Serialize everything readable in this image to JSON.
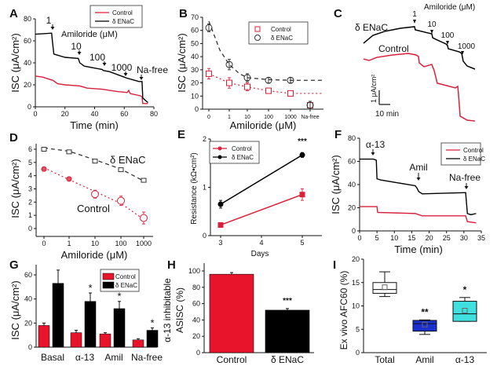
{
  "chart_data": [
    {
      "panel": "A",
      "type": "line",
      "xlabel": "Time (min)",
      "ylabel": "ISC (μA/cm²)",
      "xlim": [
        0,
        80
      ],
      "ylim": [
        0,
        80
      ],
      "xticks": [
        "0",
        "20",
        "40",
        "60",
        "80"
      ],
      "yticks": [
        "0",
        "20",
        "40",
        "60",
        "80"
      ],
      "legend": [
        "Control",
        "δ ENaC"
      ],
      "legend_position": "top-right",
      "annotations": {
        "a1": "1",
        "amiloride": "Amiloride (μM)",
        "a10": "10",
        "a100": "100",
        "a1000": "1000",
        "nafree": "Na-free"
      },
      "series": [
        {
          "name": "Control",
          "color": "#d8203a",
          "x": [
            0,
            5,
            12,
            15,
            20,
            30,
            35,
            45,
            55,
            62,
            63,
            64,
            71,
            72,
            72.5,
            76
          ],
          "y": [
            28,
            27,
            24,
            21,
            20,
            19,
            17,
            16,
            14,
            13,
            15,
            12,
            10,
            9,
            3,
            3
          ]
        },
        {
          "name": "δ ENaC",
          "color": "#000000",
          "x": [
            0,
            11,
            11.5,
            12.5,
            20,
            29,
            30,
            33,
            45,
            46,
            50,
            60,
            62,
            70,
            72,
            72.5,
            75,
            76
          ],
          "y": [
            66,
            67,
            60,
            48,
            45,
            44,
            40,
            37,
            34,
            33,
            32,
            27,
            26,
            23,
            23,
            8,
            5,
            4
          ]
        }
      ]
    },
    {
      "panel": "B",
      "type": "scatter",
      "xlabel": "Amiloride (μM)",
      "ylabel": "ISC (μA/cm²)",
      "ylim": [
        0,
        70
      ],
      "categories": [
        "0",
        "1",
        "10",
        "100",
        "1000",
        "Na-free"
      ],
      "yticks": [
        "0",
        "10",
        "20",
        "30",
        "40",
        "50",
        "60",
        "70"
      ],
      "legend": [
        "Control",
        "δ ENaC"
      ],
      "legend_position": "top-right",
      "series": [
        {
          "name": "Control",
          "color": "#d8203a",
          "marker": "square",
          "values": [
            27,
            20,
            17,
            14,
            12,
            3
          ],
          "errors": [
            4,
            4,
            3,
            2,
            1,
            2
          ]
        },
        {
          "name": "δ ENaC",
          "color": "#333333",
          "marker": "circle",
          "values": [
            62,
            34,
            24,
            22,
            22,
            3
          ],
          "errors": [
            3,
            4,
            3,
            2,
            2,
            3
          ]
        }
      ]
    },
    {
      "panel": "C",
      "type": "line",
      "xunit": "min",
      "yunit": "μA/cm²",
      "labels": {
        "enac": "δ ENaC",
        "control": "Control",
        "a1": "1",
        "amiloride": "Amiloride (μM)",
        "a10": "10",
        "a100": "100",
        "a1000": "1000",
        "scale_y": "1 μA/cm²",
        "scale_x": "10 min"
      },
      "series": [
        {
          "name": "δ ENaC",
          "color": "#000000",
          "x": [
            0,
            8.6,
            19.3,
            33.6,
            46.4,
            47.1,
            58.6,
            62.1,
            62.9,
            65.7,
            75,
            76.4,
            77.1,
            87.1,
            89.3,
            90.7,
            94.3,
            101.4
          ],
          "y": [
            5.83,
            6.39,
            6.67,
            6.89,
            7.0,
            6.78,
            6.56,
            6.5,
            6.22,
            6.11,
            5.78,
            5.67,
            5.44,
            5.22,
            5.11,
            4.56,
            4.22,
            4.0
          ]
        },
        {
          "name": "Control",
          "color": "#d8203a",
          "x": [
            0,
            5,
            12.1,
            26.4,
            40.7,
            47.9,
            50,
            50.7,
            55,
            60,
            62.1,
            64.3,
            65.7,
            67.1,
            72.9,
            83.6,
            85.7,
            86.4,
            87.9,
            94.3,
            101.4
          ],
          "y": [
            4.72,
            4.61,
            4.83,
            5.0,
            5.11,
            5.0,
            4.89,
            4.44,
            4.17,
            4.28,
            4.33,
            3.89,
            3.44,
            3.0,
            2.89,
            2.67,
            2.78,
            2.22,
            0.67,
            0.39,
            0.33
          ]
        }
      ]
    },
    {
      "panel": "D",
      "type": "scatter",
      "xlabel": "Amiloride (μM)",
      "ylabel": "ISC (μA/cm²)",
      "ylim": [
        0,
        6.5
      ],
      "categories": [
        "0",
        "1",
        "10",
        "100",
        "1000"
      ],
      "yticks": [
        "0",
        "1",
        "2",
        "3",
        "4",
        "5",
        "6"
      ],
      "labels": {
        "enac": "δ ENaC",
        "control": "Control"
      },
      "series": [
        {
          "name": "δ ENaC",
          "color": "#333333",
          "values": [
            6.0,
            5.8,
            5.1,
            4.45,
            3.65
          ],
          "errors": [
            0.08,
            0.1,
            0.12,
            0.1,
            0.08
          ]
        },
        {
          "name": "Control",
          "color": "#d8203a",
          "values": [
            4.5,
            3.75,
            2.6,
            2.1,
            0.8
          ],
          "errors": [
            0.12,
            0.1,
            0.3,
            0.35,
            0.45
          ]
        }
      ]
    },
    {
      "panel": "E",
      "type": "line",
      "xlabel": "Days",
      "ylabel": "Resistance (kΩ•cm²)",
      "xlim": [
        2.75,
        5.5
      ],
      "ylim": [
        0,
        2
      ],
      "xticks": [
        "3",
        "4",
        "5"
      ],
      "yticks": [
        "0",
        "1",
        "2"
      ],
      "legend": [
        "Control",
        "δ ENaC"
      ],
      "legend_position": "top-left",
      "significance": "***",
      "series": [
        {
          "name": "Control",
          "color": "#d8203a",
          "x": [
            3,
            5
          ],
          "y": [
            0.22,
            0.85
          ],
          "errors": [
            0.05,
            0.12
          ]
        },
        {
          "name": "δ ENaC",
          "color": "#000000",
          "x": [
            3,
            5
          ],
          "y": [
            0.65,
            1.67
          ],
          "errors": [
            0.08,
            0.05
          ]
        }
      ]
    },
    {
      "panel": "F",
      "type": "line",
      "xlabel": "Time (min)",
      "ylabel": "ISC (μA/cm²)",
      "xlim": [
        0,
        35
      ],
      "ylim": [
        0,
        80
      ],
      "xticks": [
        "0",
        "5",
        "10",
        "15",
        "20",
        "25",
        "30",
        "35"
      ],
      "yticks": [
        "0",
        "20",
        "40",
        "60",
        "80"
      ],
      "legend": [
        "Control",
        "δ ENaC"
      ],
      "legend_position": "top-right",
      "annotations": {
        "a13": "α-13",
        "amil": "Amil",
        "nafree": "Na-free"
      },
      "series": [
        {
          "name": "Control",
          "color": "#d8203a",
          "x": [
            0,
            5,
            5.2,
            16,
            18,
            30,
            30.5,
            31,
            33.5
          ],
          "y": [
            21,
            21,
            16,
            15,
            13,
            13,
            13,
            8,
            7
          ]
        },
        {
          "name": "δ ENaC",
          "color": "#000000",
          "x": [
            0,
            4,
            4.8,
            5,
            6,
            10,
            16,
            16.5,
            17,
            18,
            30,
            30.5,
            31,
            32,
            33.5
          ],
          "y": [
            62,
            62,
            61,
            45,
            44,
            42,
            39,
            37,
            34,
            32,
            33,
            33,
            15,
            14,
            15
          ]
        }
      ]
    },
    {
      "panel": "G",
      "type": "bar",
      "ylabel": "ISC (μA/cm²)",
      "ylim": [
        0,
        70
      ],
      "categories": [
        "Basal",
        "α-13",
        "Amil",
        "Na-free"
      ],
      "yticks": [
        "0",
        "20",
        "40",
        "60"
      ],
      "legend": [
        "Control",
        "δ ENaC"
      ],
      "legend_position": "top-right",
      "significance": [
        "",
        "*",
        "*",
        "*"
      ],
      "series": [
        {
          "name": "Control",
          "color": "#e8142c",
          "values": [
            18,
            12,
            11,
            6
          ],
          "errors": [
            2,
            2,
            1,
            1
          ]
        },
        {
          "name": "δ ENaC",
          "color": "#000000",
          "values": [
            53,
            38,
            32,
            14
          ],
          "errors": [
            11,
            7,
            6,
            2
          ]
        }
      ]
    },
    {
      "panel": "H",
      "type": "bar",
      "ylabel": [
        "α-13 inhibitable",
        "ASISC (%)"
      ],
      "ylim": [
        0,
        110
      ],
      "categories": [
        "Control",
        "δ ENaC"
      ],
      "yticks": [
        "0",
        "20",
        "40",
        "60",
        "80",
        "100"
      ],
      "significance": "***",
      "values": [
        96,
        52
      ],
      "errors": [
        2,
        2
      ],
      "colors": [
        "#e8142c",
        "#000000"
      ]
    },
    {
      "panel": "I",
      "type": "box",
      "ylabel": "Ex vivo AFC60 (%)",
      "ylim": [
        0,
        20
      ],
      "categories": [
        "Total",
        "Amil",
        "α-13"
      ],
      "yticks": [
        "0",
        "5",
        "10",
        "15",
        "20"
      ],
      "significance": [
        "",
        "**",
        "*"
      ],
      "boxes": [
        {
          "min": 12,
          "q1": 12.7,
          "median": 13.5,
          "q3": 15,
          "max": 17.3,
          "mean": 14,
          "color": "#ffffff"
        },
        {
          "min": 3.9,
          "q1": 4.6,
          "median": 6.2,
          "q3": 6.9,
          "max": 7.0,
          "mean": 6,
          "color": "#1a30d0"
        },
        {
          "min": 6.7,
          "q1": 6.7,
          "median": 8.3,
          "q3": 11,
          "max": 11.8,
          "mean": 9,
          "color": "#40e0e0"
        }
      ]
    }
  ]
}
